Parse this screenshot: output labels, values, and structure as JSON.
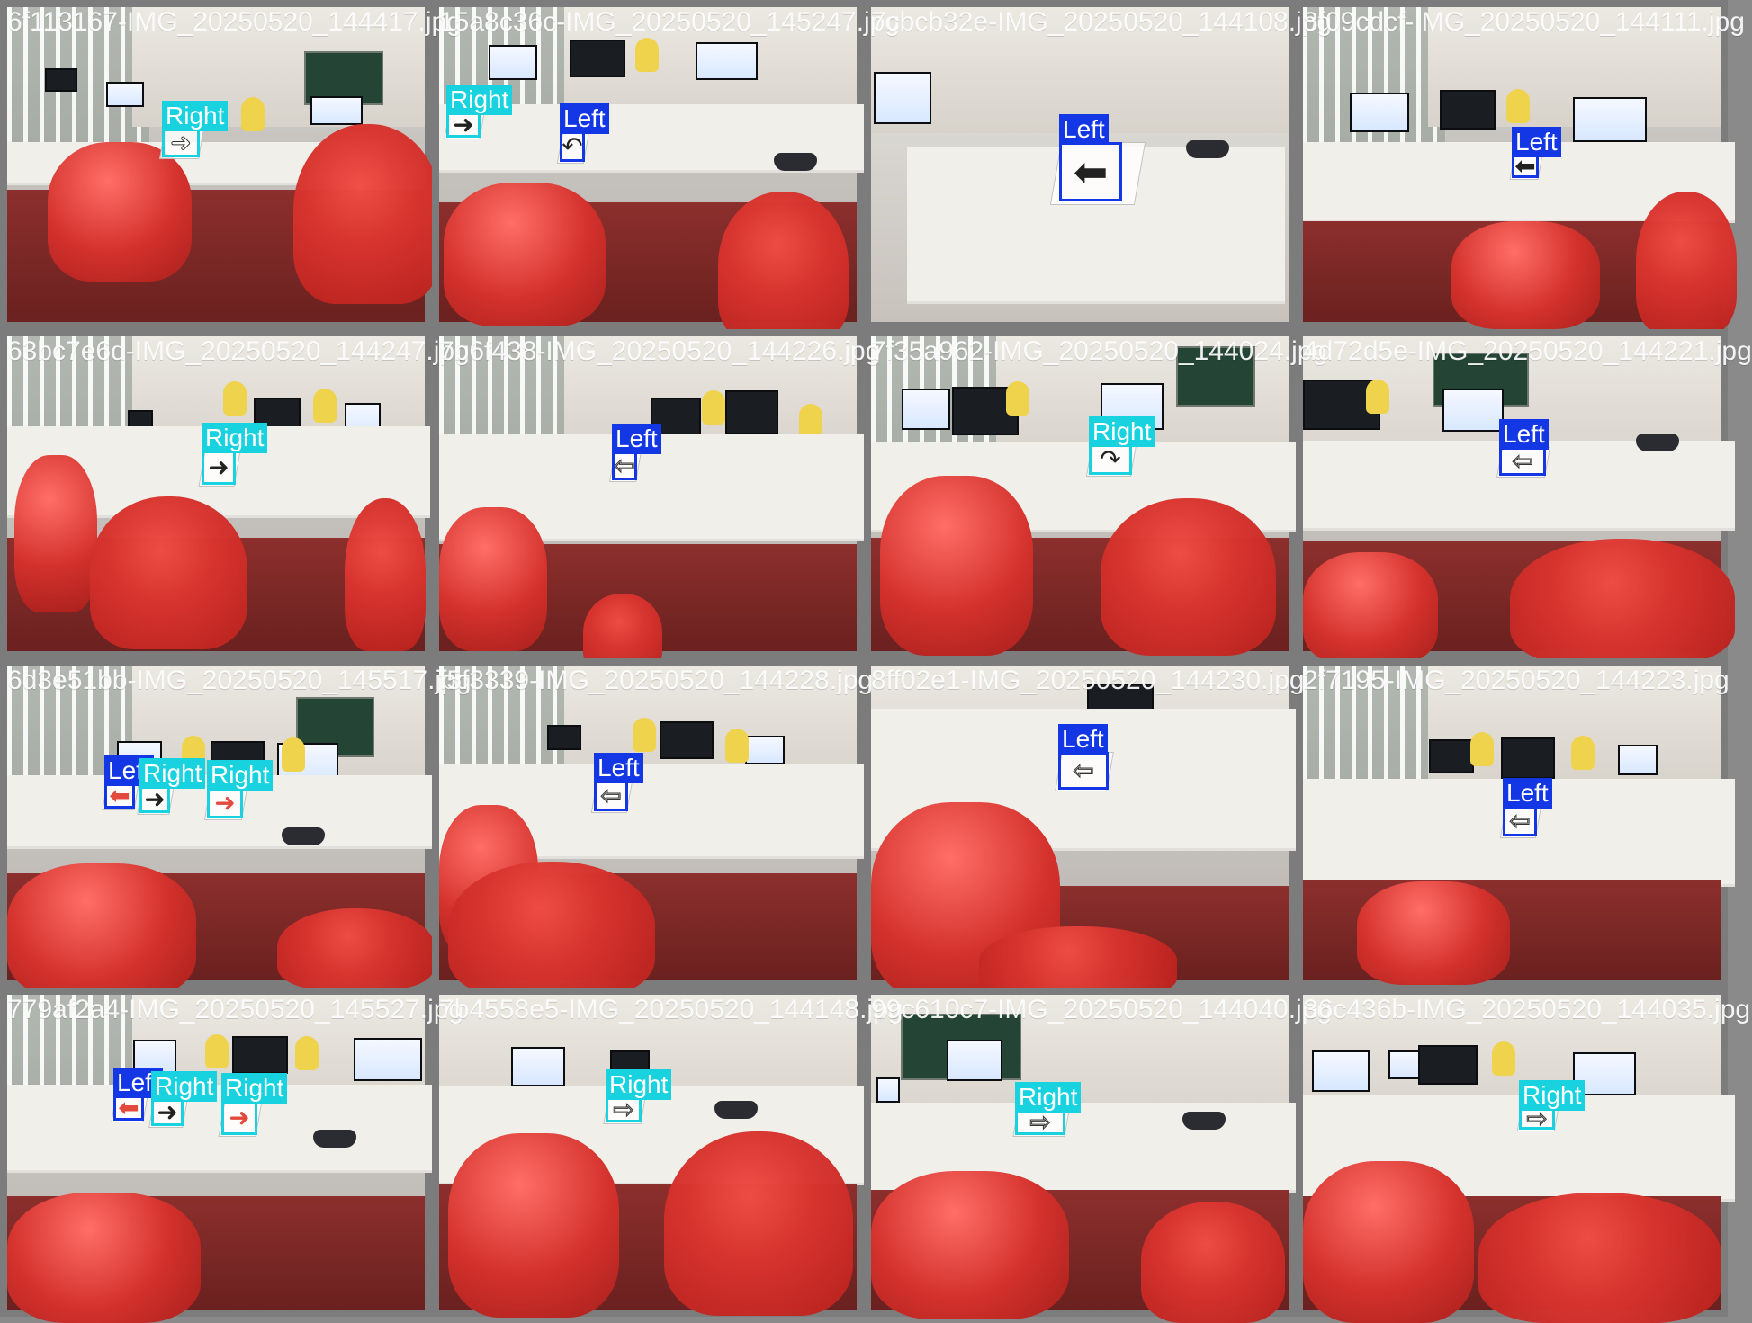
{
  "tiles": [
    {
      "filename": "6f113167-IMG_20250520_144417.jpg",
      "detections": [
        {
          "label": "Right",
          "class": "right",
          "icon": "right-arrow-icon",
          "style": "outline"
        }
      ]
    },
    {
      "filename": "15a8c36c-IMG_20250520_145247.jpg",
      "detections": [
        {
          "label": "Right",
          "class": "right",
          "icon": "right-arrow-icon",
          "style": "dark"
        },
        {
          "label": "Left",
          "class": "left",
          "icon": "curved-left-arrow-icon",
          "style": "dark"
        }
      ]
    },
    {
      "filename": "7cbcb32e-IMG_20250520_144108.jpg",
      "detections": [
        {
          "label": "Left",
          "class": "left",
          "icon": "left-arrow-icon",
          "style": "dark"
        }
      ]
    },
    {
      "filename": "8f09cdcf-IMG_20250520_144111.jpg",
      "detections": [
        {
          "label": "Left",
          "class": "left",
          "icon": "left-arrow-icon",
          "style": "dark"
        }
      ]
    },
    {
      "filename": "63bc7e6d-IMG_20250520_144247.jpg",
      "detections": [
        {
          "label": "Right",
          "class": "right",
          "icon": "right-arrow-icon",
          "style": "dark"
        }
      ]
    },
    {
      "filename": "7b6f438-IMG_20250520_144226.jpg",
      "detections": [
        {
          "label": "Left",
          "class": "left",
          "icon": "left-arrow-icon",
          "style": "outline"
        }
      ]
    },
    {
      "filename": "7f35a962-IMG_20250520_144024.jpg",
      "detections": [
        {
          "label": "Right",
          "class": "right",
          "icon": "curved-right-arrow-icon",
          "style": "dark"
        }
      ]
    },
    {
      "filename": "4d72d5e-IMG_20250520_144221.jpg",
      "detections": [
        {
          "label": "Left",
          "class": "left",
          "icon": "left-arrow-icon",
          "style": "outline"
        }
      ]
    },
    {
      "filename": "6d3e51bb-IMG_20250520_145517.jpg",
      "detections": [
        {
          "label": "Left",
          "class": "left",
          "icon": "left-arrow-icon",
          "style": "red"
        },
        {
          "label": "Right",
          "class": "right",
          "icon": "right-arrow-icon",
          "style": "dark"
        },
        {
          "label": "Right",
          "class": "right",
          "icon": "right-arrow-icon",
          "style": "red"
        }
      ]
    },
    {
      "filename": "f5f3339-IMG_20250520_144228.jpg",
      "detections": [
        {
          "label": "Left",
          "class": "left",
          "icon": "left-arrow-icon",
          "style": "outline"
        }
      ]
    },
    {
      "filename": "8ff02e1-IMG_20250520_144230.jpg",
      "detections": [
        {
          "label": "Left",
          "class": "left",
          "icon": "left-arrow-icon",
          "style": "outline"
        }
      ]
    },
    {
      "filename": "2f7195-IMG_20250520_144223.jpg",
      "detections": [
        {
          "label": "Left",
          "class": "left",
          "icon": "left-arrow-icon",
          "style": "outline"
        }
      ]
    },
    {
      "filename": "779af2a4-IMG_20250520_145527.jpg",
      "detections": [
        {
          "label": "Left",
          "class": "left",
          "icon": "left-arrow-icon",
          "style": "red"
        },
        {
          "label": "Right",
          "class": "right",
          "icon": "right-arrow-icon",
          "style": "dark"
        },
        {
          "label": "Right",
          "class": "right",
          "icon": "right-arrow-icon",
          "style": "red"
        }
      ]
    },
    {
      "filename": "7b4558e5-IMG_20250520_144148.jpg",
      "detections": [
        {
          "label": "Right",
          "class": "right",
          "icon": "right-arrow-icon",
          "style": "outline"
        }
      ]
    },
    {
      "filename": "99c610c7-IMG_20250520_144040.jpg",
      "detections": [
        {
          "label": "Right",
          "class": "right",
          "icon": "right-arrow-icon",
          "style": "outline"
        }
      ]
    },
    {
      "filename": "36c436b-IMG_20250520_144035.jpg",
      "detections": [
        {
          "label": "Right",
          "class": "right",
          "icon": "right-arrow-icon",
          "style": "outline"
        }
      ]
    }
  ],
  "colors": {
    "right_box": "#18d3df",
    "left_box": "#1437e6",
    "grid_background": "#8a8a8a"
  }
}
